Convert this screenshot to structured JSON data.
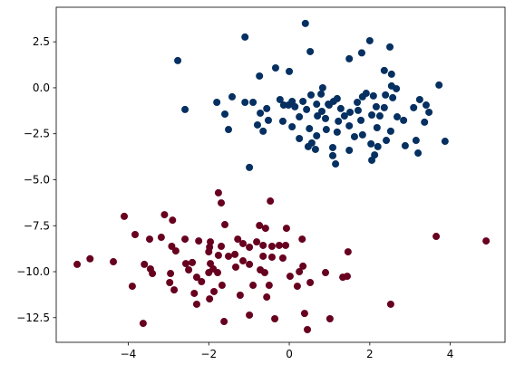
{
  "chart_data": {
    "type": "scatter",
    "xlim": [
      -5.79,
      5.36
    ],
    "ylim": [
      -13.84,
      4.38
    ],
    "xticks": [
      {
        "value": -4,
        "label": "−4"
      },
      {
        "value": -2,
        "label": "−2"
      },
      0,
      2,
      4
    ],
    "yticks": [
      {
        "value": 2.5,
        "label": "2.5"
      },
      {
        "value": 0,
        "label": "0.0"
      },
      {
        "value": -2.5,
        "label": "−2.5"
      },
      {
        "value": -5,
        "label": "−5.0"
      },
      {
        "value": -7.5,
        "label": "−7.5"
      },
      {
        "value": -10,
        "label": "−10.0"
      },
      {
        "value": -12.5,
        "label": "−12.5"
      }
    ],
    "grid": false,
    "series": [
      {
        "color": "#053061",
        "x": [
          0.4,
          -1.1,
          2.0,
          2.5,
          -2.77,
          0.52,
          1.49,
          1.8,
          -0.34,
          0,
          -0.74,
          2.36,
          2.54,
          3.72,
          2.66,
          0.83,
          2.54,
          -2.59,
          -1.8,
          -1.42,
          -1.6,
          -1.1,
          -0.9,
          -1.51,
          -0.79,
          -0.65,
          -0.72,
          -0.23,
          -0.14,
          -0.02,
          0.07,
          0.14,
          0.34,
          0.54,
          0.79,
          0.68,
          0.43,
          0.25,
          0.7,
          0.81,
          0.9,
          0.99,
          1.1,
          1.19,
          1.28,
          1.37,
          1.51,
          1.69,
          1.82,
          1.91,
          2.09,
          2.16,
          2.05,
          1.78,
          1.49,
          1.19,
          0.92,
          0.68,
          0.56,
          0.47,
          0.65,
          0.25,
          0.5,
          0.07,
          -0.16,
          -0.56,
          -0.52,
          -0.99,
          1.08,
          1.15,
          1.49,
          1.08,
          1.62,
          1.82,
          2.03,
          2.12,
          2.05,
          2.2,
          2.41,
          2.52,
          2.68,
          2.84,
          2.88,
          3.2,
          3.15,
          3.36,
          3.09,
          3.24,
          3.4,
          3.47,
          3.87,
          2.36,
          2.25,
          2.18,
          1.71,
          1.22,
          0.97,
          2.39,
          2.57
        ],
        "values": [
          3.5,
          2.76,
          2.56,
          2.22,
          1.48,
          1.97,
          1.58,
          1.9,
          1.08,
          0.89,
          0.64,
          0.94,
          0.74,
          0.15,
          -0.05,
          0,
          0.1,
          -1.18,
          -0.79,
          -0.49,
          -1.43,
          -0.79,
          -0.79,
          -2.27,
          -2.02,
          -2.36,
          -1.38,
          -0.64,
          -0.94,
          -0.94,
          -0.74,
          -1.03,
          -0.74,
          -0.39,
          -0.34,
          -0.89,
          -1.18,
          -1.58,
          -1.53,
          -1.28,
          -1.67,
          -0.94,
          -0.74,
          -0.59,
          -1.13,
          -1.53,
          -1.33,
          -0.79,
          -0.49,
          -0.3,
          -0.44,
          -1.03,
          -1.48,
          -1.77,
          -2.07,
          -2.41,
          -2.27,
          -2.61,
          -3.0,
          -3.2,
          -3.35,
          -2.76,
          -2.22,
          -2.12,
          -1.82,
          -1.13,
          -1.77,
          -4.33,
          -3.25,
          -4.14,
          -3.4,
          -3.69,
          -2.66,
          -2.56,
          -3.05,
          -3.65,
          -3.94,
          -3.2,
          -2.86,
          -2.36,
          -1.58,
          -1.77,
          -3.15,
          -3.55,
          -2.86,
          -1.87,
          -1.08,
          -0.64,
          -0.94,
          -1.33,
          -2.91,
          -1.08,
          -1.53,
          -2.17,
          -1.23,
          -1.82,
          -0.89,
          -0.39,
          -0.54
        ]
      },
      {
        "color": "#67001f",
        "x": [
          -1.76,
          -1.69,
          -0.47,
          -4.1,
          -3.1,
          -2.9,
          -1.6,
          -0.74,
          -0.59,
          -0.07,
          -3.83,
          -3.47,
          -3.18,
          3.65,
          4.89,
          -2.59,
          -2.25,
          -1.98,
          -1.69,
          -1.28,
          -1.15,
          -0.99,
          -0.81,
          -0.65,
          -0.43,
          -0.25,
          -0.09,
          0.32,
          1.46,
          -2.92,
          -2.82,
          -2.0,
          -1.76,
          -1.35,
          -0.65,
          -0.43,
          -0.99,
          -0.72,
          -0.61,
          -1.96,
          -2.41,
          -2.57,
          -2.5,
          -1.89,
          -1.78,
          -5.27,
          -4.95,
          -4.37,
          -3.45,
          -3.4,
          -3.9,
          -2.95,
          -2.97,
          -2.86,
          -2.3,
          -2.36,
          -1.98,
          -2.3,
          -1.87,
          -1.67,
          -1.22,
          -0.9,
          -0.5,
          -0.56,
          -1.62,
          -0.99,
          -0.36,
          0.38,
          0.45,
          0.2,
          0.25,
          0.34,
          0.52,
          0.9,
          1.33,
          1.44,
          1.01,
          2.52,
          -3.63,
          -3.6,
          -0.16,
          -1.15,
          -1.51,
          -2.0,
          -2.18,
          -1.33,
          0.02,
          -1.96
        ],
        "values": [
          -5.71,
          -6.26,
          -6.16,
          -6.99,
          -6.9,
          -7.2,
          -7.44,
          -7.49,
          -7.64,
          -7.64,
          -7.98,
          -8.23,
          -8.13,
          -8.08,
          -8.33,
          -8.23,
          -8.33,
          -8.67,
          -8.62,
          -8.23,
          -8.47,
          -8.67,
          -8.38,
          -8.57,
          -8.62,
          -8.57,
          -8.57,
          -8.23,
          -8.92,
          -8.62,
          -8.87,
          -8.92,
          -9.11,
          -9.06,
          -9.16,
          -9.21,
          -9.6,
          -9.9,
          -10.05,
          -9.56,
          -9.5,
          -9.56,
          -9.9,
          -9.85,
          -10.05,
          -9.6,
          -9.3,
          -9.46,
          -9.85,
          -10.1,
          -10.79,
          -10.1,
          -10.59,
          -10.99,
          -10.3,
          -11.18,
          -11.48,
          -11.77,
          -11.08,
          -10.74,
          -11.28,
          -10.74,
          -10.74,
          -11.38,
          -12.71,
          -12.36,
          -12.56,
          -12.27,
          -13.15,
          -10.79,
          -10.0,
          -9.7,
          -10.59,
          -10.05,
          -10.3,
          -10.25,
          -12.56,
          -11.77,
          -12.81,
          -9.6,
          -9.26,
          -9.41,
          -9.16,
          -10.05,
          -10.54,
          -9.75,
          -10.25,
          -8.38
        ]
      }
    ]
  }
}
